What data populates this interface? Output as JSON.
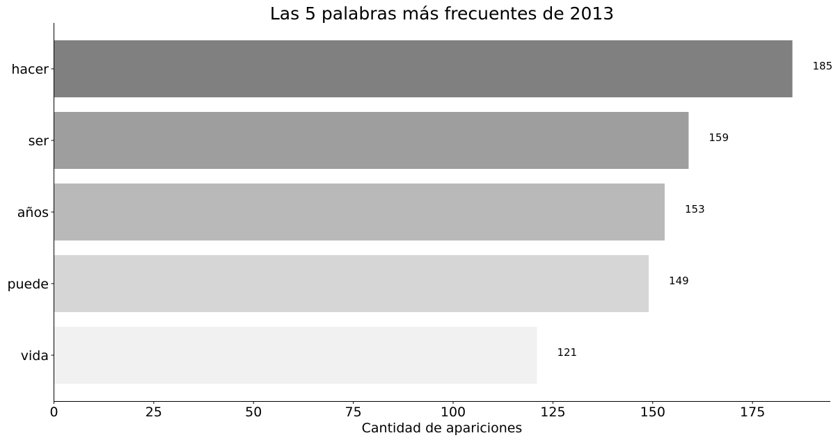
{
  "chart_data": {
    "type": "bar",
    "orientation": "horizontal",
    "title": "Las 5 palabras más frecuentes de 2013",
    "xlabel": "Cantidad de apariciones",
    "ylabel": "",
    "categories": [
      "hacer",
      "ser",
      "años",
      "puede",
      "vida"
    ],
    "values": [
      185,
      159,
      153,
      149,
      121
    ],
    "value_labels": [
      "185",
      "159",
      "153",
      "149",
      "121"
    ],
    "colors": [
      "#808080",
      "#9e9e9e",
      "#b9b9b9",
      "#d6d6d6",
      "#f1f1f1"
    ],
    "xlim": [
      0,
      194.5
    ],
    "xticks": [
      0,
      25,
      50,
      75,
      100,
      125,
      150,
      175
    ],
    "xtick_labels": [
      "0",
      "25",
      "50",
      "75",
      "100",
      "125",
      "150",
      "175"
    ],
    "grid": false,
    "legend": "none"
  }
}
